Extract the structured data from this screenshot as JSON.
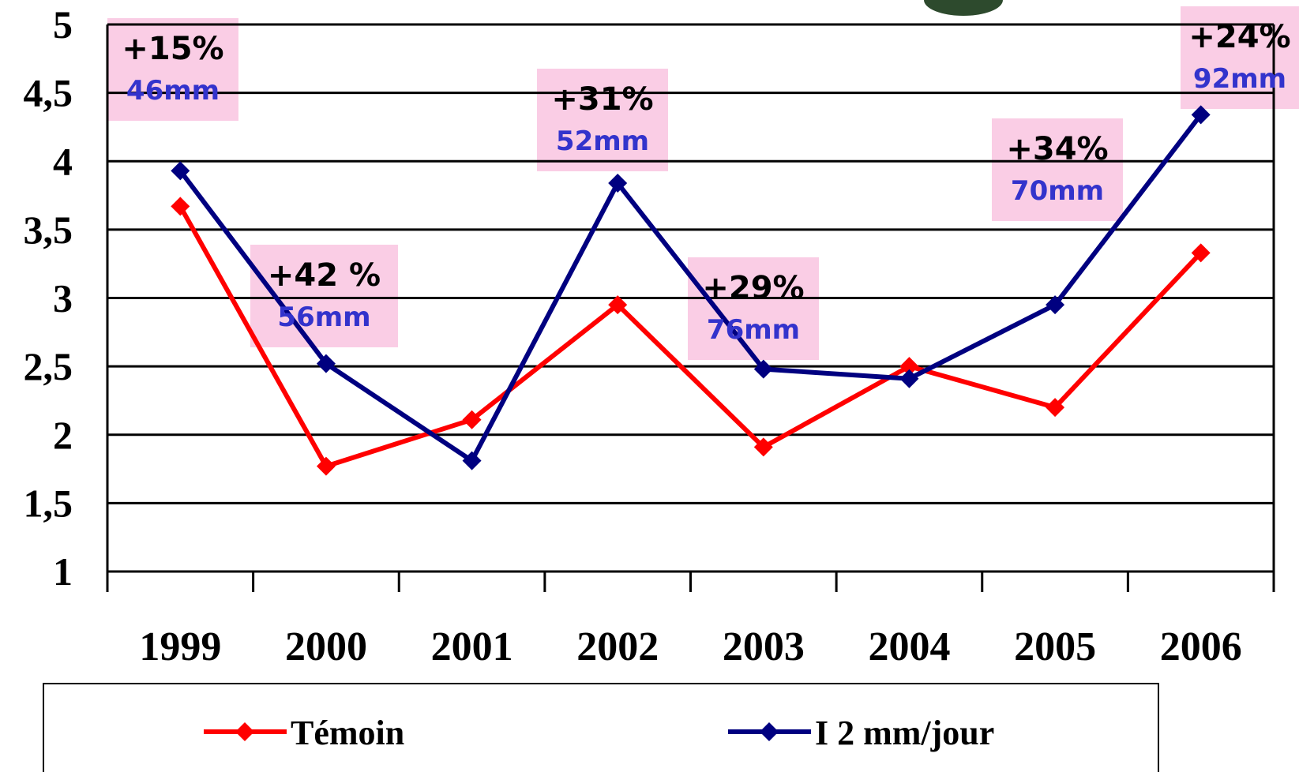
{
  "chart_data": {
    "type": "line",
    "categories": [
      "1999",
      "2000",
      "2001",
      "2002",
      "2003",
      "2004",
      "2005",
      "2006"
    ],
    "series": [
      {
        "name": "Témoin",
        "color": "#ff0000",
        "values": [
          3.67,
          1.77,
          2.11,
          2.95,
          1.91,
          2.5,
          2.2,
          3.33
        ]
      },
      {
        "name": "I 2 mm/jour",
        "color": "#000080",
        "values": [
          3.93,
          2.52,
          1.81,
          3.84,
          2.48,
          2.41,
          2.95,
          4.34
        ]
      }
    ],
    "ylim": [
      1,
      5
    ],
    "yticks": [
      1,
      {
        "value": 1.5,
        "label": "1,5"
      },
      2,
      {
        "value": 2.5,
        "label": "2,5"
      },
      3,
      {
        "value": 3.5,
        "label": "3,5"
      },
      4,
      {
        "value": 4.5,
        "label": "4,5"
      },
      5
    ],
    "grid": true,
    "annotations": [
      {
        "text": "+15%",
        "subtext": "46mm"
      },
      {
        "text": "+42 %",
        "subtext": "56mm"
      },
      {
        "text": "+31%",
        "subtext": "52mm"
      },
      {
        "text": "+29%",
        "subtext": "76mm"
      },
      {
        "text": "+34%",
        "subtext": "70mm"
      },
      {
        "text": "+24%",
        "subtext": "92mm"
      }
    ]
  }
}
